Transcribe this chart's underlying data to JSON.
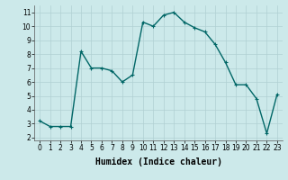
{
  "x": [
    0,
    1,
    2,
    3,
    4,
    5,
    6,
    7,
    8,
    9,
    10,
    11,
    12,
    13,
    14,
    15,
    16,
    17,
    18,
    19,
    20,
    21,
    22,
    23
  ],
  "y": [
    3.2,
    2.8,
    2.8,
    2.8,
    8.2,
    7.0,
    7.0,
    6.8,
    6.0,
    6.5,
    10.3,
    10.0,
    10.8,
    11.0,
    10.3,
    9.9,
    9.6,
    8.7,
    7.4,
    5.8,
    5.8,
    4.8,
    2.3,
    5.1
  ],
  "line_color": "#006666",
  "marker": "+",
  "marker_size": 3,
  "linewidth": 1.0,
  "bg_color": "#cce9ea",
  "grid_color": "#b0d0d2",
  "xlabel": "Humidex (Indice chaleur)",
  "xlabel_fontsize": 7,
  "xlim": [
    -0.5,
    23.5
  ],
  "ylim": [
    1.8,
    11.5
  ],
  "yticks": [
    2,
    3,
    4,
    5,
    6,
    7,
    8,
    9,
    10,
    11
  ],
  "xticks": [
    0,
    1,
    2,
    3,
    4,
    5,
    6,
    7,
    8,
    9,
    10,
    11,
    12,
    13,
    14,
    15,
    16,
    17,
    18,
    19,
    20,
    21,
    22,
    23
  ]
}
